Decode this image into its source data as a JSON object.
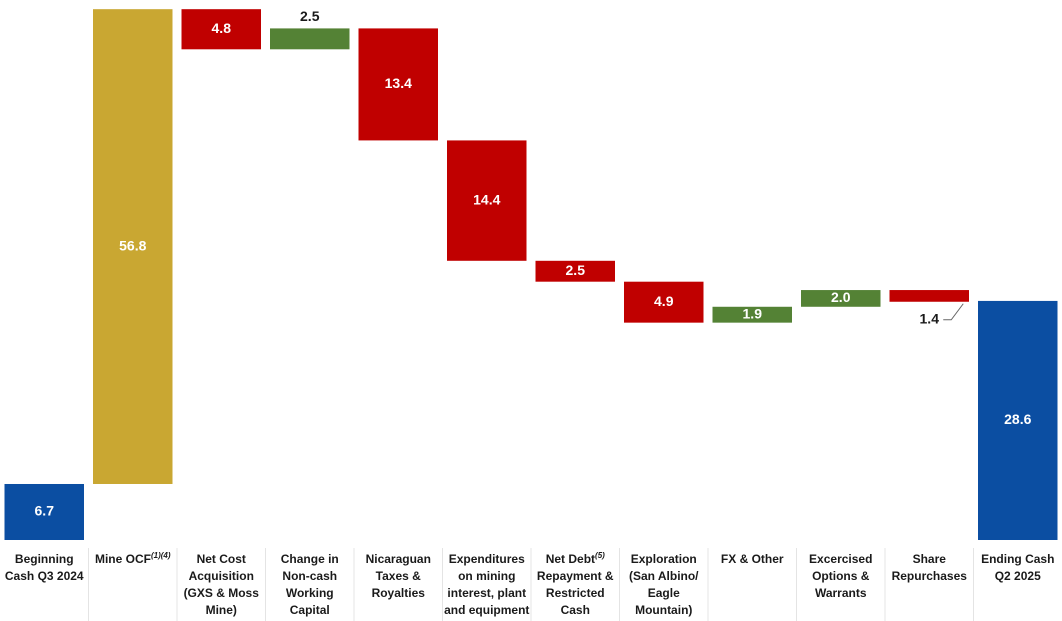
{
  "chart_data": {
    "type": "waterfall",
    "categories": [
      "Beginning Cash Q3 2024",
      "Mine OCF",
      "Net Cost Acquisition (GXS & Moss Mine)",
      "Change in Non-cash Working Capital",
      "Nicaraguan Taxes & Royalties",
      "Expenditures on mining interest, plant and equipment",
      "Net Debt",
      "Exploration (San Albino/ Eagle Mountain)",
      "FX & Other",
      "Excercised Options & Warrants",
      "Share Repurchases",
      "Ending Cash Q2 2025"
    ],
    "category_notes": [
      null,
      "(1)(4)",
      null,
      null,
      null,
      null,
      "(5)",
      null,
      null,
      null,
      null,
      null
    ],
    "category_suffixes": [
      null,
      null,
      null,
      null,
      null,
      null,
      "Repayment & Restricted Cash Refunded",
      null,
      null,
      null,
      null,
      null
    ],
    "measure": [
      "absolute",
      "relative",
      "relative",
      "relative",
      "relative",
      "relative",
      "relative",
      "relative",
      "relative",
      "relative",
      "relative",
      "total"
    ],
    "values": [
      6.7,
      56.8,
      -4.8,
      2.5,
      -13.4,
      -14.4,
      -2.5,
      -4.9,
      1.9,
      2.0,
      -1.4,
      28.6
    ],
    "value_labels": [
      "6.7",
      "56.8",
      "4.8",
      "2.5",
      "13.4",
      "14.4",
      "2.5",
      "4.9",
      "1.9",
      "2.0",
      "1.4",
      "28.6"
    ],
    "label_positions": [
      "inside",
      "inside",
      "inside",
      "above",
      "inside",
      "inside",
      "inside",
      "inside",
      "inside",
      "inside",
      "below",
      "inside"
    ],
    "colors": [
      "#0b4ea2",
      "#c9a732",
      "#c00000",
      "#548235",
      "#c00000",
      "#c00000",
      "#c00000",
      "#c00000",
      "#548235",
      "#548235",
      "#c00000",
      "#0b4ea2"
    ],
    "ylim": [
      0,
      64
    ]
  }
}
